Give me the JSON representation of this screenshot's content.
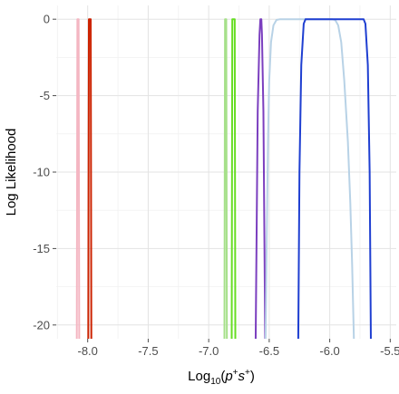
{
  "chart_data": {
    "type": "line",
    "title": "",
    "xlabel": {
      "prefix": "Log",
      "subscript": "10",
      "open": "(",
      "p": "p",
      "p_sup": "+",
      "s": "s",
      "s_sup": "+",
      "close": ")"
    },
    "ylabel": "Log Likelihood",
    "xlim": [
      -8.26,
      -5.45
    ],
    "ylim": [
      -20.9,
      0.9
    ],
    "xticks": [
      -8.0,
      -7.5,
      -7.0,
      -6.5,
      -6.0,
      -5.5
    ],
    "xtick_labels": [
      "-8.0",
      "-7.5",
      "-7.0",
      "-6.5",
      "-6.0",
      "-5.5"
    ],
    "yticks": [
      0,
      -5,
      -10,
      -15,
      -20
    ],
    "ytick_labels": [
      "0",
      "-5",
      "-10",
      "-15",
      "-20"
    ],
    "grid": true,
    "legend": "none",
    "series": [
      {
        "color": "#f4b6c2",
        "x": [
          -8.09,
          -8.085,
          -8.075,
          -8.07
        ],
        "y": [
          -21,
          0,
          0,
          -21
        ]
      },
      {
        "color": "#cc2200",
        "x": [
          -7.995,
          -7.99,
          -7.975,
          -7.97
        ],
        "y": [
          -21,
          0,
          0,
          -21
        ]
      },
      {
        "color": "#a6e08a",
        "x": [
          -6.87,
          -6.865,
          -6.855,
          -6.85
        ],
        "y": [
          -21,
          0,
          0,
          -21
        ]
      },
      {
        "color": "#66dd22",
        "x": [
          -6.81,
          -6.805,
          -6.785,
          -6.78
        ],
        "y": [
          -21,
          0,
          0,
          -21
        ]
      },
      {
        "color": "#7b3fbf",
        "x": [
          -6.612,
          -6.595,
          -6.58,
          -6.573,
          -6.565,
          -6.56,
          -6.548,
          -6.533
        ],
        "y": [
          -21,
          -6,
          -1,
          0,
          0,
          -1,
          -6,
          -21
        ]
      },
      {
        "color": "#b8d2e6",
        "x": [
          -6.53,
          -6.52,
          -6.51,
          -6.5,
          -6.485,
          -6.465,
          -6.44,
          -6.41,
          -5.98,
          -5.955,
          -5.93,
          -5.905,
          -5.88,
          -5.85,
          -5.83,
          -5.815,
          -5.8
        ],
        "y": [
          -21,
          -14,
          -8,
          -4,
          -1.5,
          -0.4,
          -0.05,
          0,
          0,
          -0.05,
          -0.4,
          -1.5,
          -4,
          -8,
          -12,
          -16,
          -21
        ]
      },
      {
        "color": "#1f3fd1",
        "x": [
          -6.26,
          -6.25,
          -6.235,
          -6.215,
          -6.2,
          -5.72,
          -5.705,
          -5.685,
          -5.67,
          -5.66
        ],
        "y": [
          -21,
          -10,
          -3,
          -0.3,
          0,
          0,
          -0.3,
          -3,
          -10,
          -21
        ]
      }
    ]
  }
}
